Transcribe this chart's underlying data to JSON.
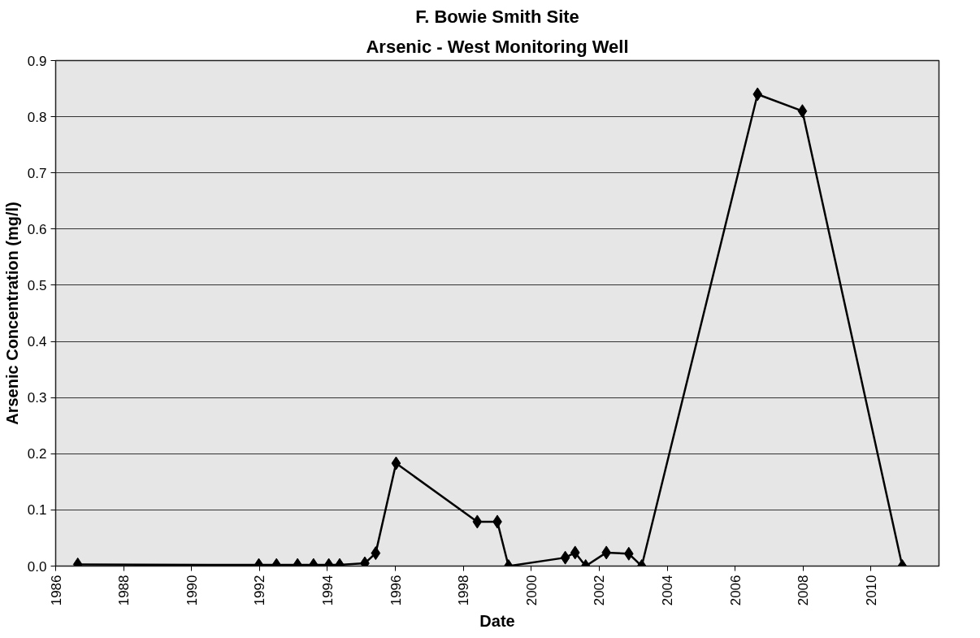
{
  "chart_data": {
    "type": "line",
    "title": "F. Bowie Smith Site",
    "subtitle": "Arsenic - West Monitoring Well",
    "xlabel": "Date",
    "ylabel": "Arsenic Concentration (mg/l)",
    "x": [
      1986.65,
      1991.98,
      1992.5,
      1993.12,
      1993.59,
      1994.04,
      1994.36,
      1995.1,
      1995.42,
      1996.02,
      1998.41,
      1999.0,
      1999.33,
      2001.0,
      2001.29,
      2001.6,
      2002.21,
      2002.87,
      2003.25,
      2006.66,
      2007.98,
      2010.92
    ],
    "series": [
      {
        "color": "#000000",
        "values": [
          0.003,
          0.002,
          0.002,
          0.002,
          0.002,
          0.002,
          0.002,
          0.005,
          0.023,
          0.183,
          0.079,
          0.079,
          0.0,
          0.015,
          0.024,
          0.0,
          0.024,
          0.022,
          0.0,
          0.84,
          0.81,
          0.0
        ]
      }
    ],
    "xlim": [
      1986,
      2012
    ],
    "xticks": [
      1986,
      1988,
      1990,
      1992,
      1994,
      1996,
      1998,
      2000,
      2002,
      2004,
      2006,
      2008,
      2010
    ],
    "ylim": [
      0,
      0.9
    ],
    "yticks": [
      {
        "value": 0,
        "label": "0.0"
      },
      0.1,
      0.2,
      0.3,
      0.4,
      0.5,
      0.6,
      0.7,
      0.8,
      0.9
    ],
    "grid": "y",
    "marker": "diamond",
    "line_style": "solid"
  }
}
